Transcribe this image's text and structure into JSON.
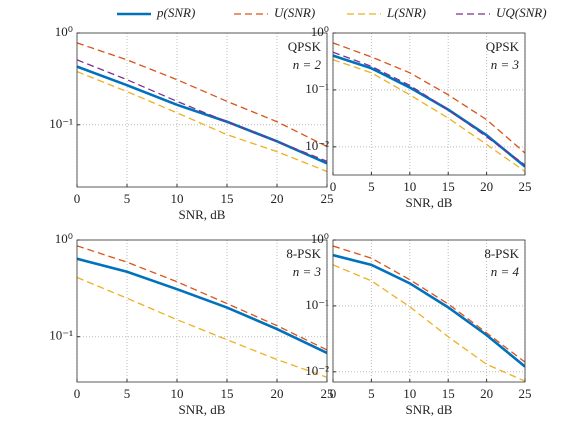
{
  "chart_data": [
    {
      "type": "line",
      "annotations": [
        "QPSK",
        "n = 2"
      ],
      "xlabel": "SNR, dB",
      "x": [
        0,
        5,
        10,
        15,
        20,
        25
      ],
      "xlim": [
        0,
        25
      ],
      "xticks": [
        0,
        5,
        10,
        15,
        20,
        25
      ],
      "ylim": [
        0.021,
        1
      ],
      "yscale": "log",
      "grid": true,
      "yticks": [
        {
          "value": 1,
          "label": "10⁰"
        },
        {
          "value": 0.1,
          "label": "10⁻¹"
        }
      ],
      "series": [
        {
          "name": "p(SNR)",
          "color": "#0072bd",
          "values": [
            0.43,
            0.27,
            0.165,
            0.108,
            0.066,
            0.038
          ]
        },
        {
          "name": "U(SNR)",
          "color": "#d95319",
          "values": [
            0.78,
            0.51,
            0.31,
            0.18,
            0.108,
            0.058
          ]
        },
        {
          "name": "L(SNR)",
          "color": "#edb120",
          "values": [
            0.38,
            0.23,
            0.135,
            0.078,
            0.051,
            0.031
          ]
        },
        {
          "name": "UQ(SNR)",
          "color": "#7e2f8e",
          "values": [
            0.51,
            0.31,
            0.18,
            0.108,
            0.066,
            0.04
          ]
        }
      ]
    },
    {
      "type": "line",
      "annotations": [
        "QPSK",
        "n = 3"
      ],
      "xlabel": "SNR, dB",
      "x": [
        0,
        5,
        10,
        15,
        20,
        25
      ],
      "xlim": [
        0,
        25
      ],
      "xticks": [
        0,
        5,
        10,
        15,
        20,
        25
      ],
      "ylim": [
        0.0032,
        1
      ],
      "yscale": "log",
      "grid": true,
      "yticks": [
        {
          "value": 1,
          "label": "10⁰"
        },
        {
          "value": 0.1,
          "label": "10⁻¹"
        },
        {
          "value": 0.01,
          "label": "10⁻²"
        }
      ],
      "series": [
        {
          "name": "p(SNR)",
          "color": "#0072bd",
          "values": [
            0.4,
            0.24,
            0.11,
            0.045,
            0.016,
            0.0045
          ]
        },
        {
          "name": "U(SNR)",
          "color": "#d95319",
          "values": [
            0.67,
            0.38,
            0.2,
            0.082,
            0.03,
            0.0078
          ]
        },
        {
          "name": "L(SNR)",
          "color": "#edb120",
          "values": [
            0.34,
            0.2,
            0.082,
            0.032,
            0.011,
            0.0037
          ]
        },
        {
          "name": "UQ(SNR)",
          "color": "#7e2f8e",
          "values": [
            0.46,
            0.26,
            0.12,
            0.045,
            0.015,
            0.0048
          ]
        }
      ]
    },
    {
      "type": "line",
      "annotations": [
        "8-PSK",
        "n = 3"
      ],
      "xlabel": "SNR, dB",
      "x": [
        0,
        5,
        10,
        15,
        20,
        25
      ],
      "xlim": [
        0,
        25
      ],
      "xticks": [
        0,
        5,
        10,
        15,
        20,
        25
      ],
      "ylim": [
        0.034,
        1
      ],
      "yscale": "log",
      "grid": true,
      "yticks": [
        {
          "value": 1,
          "label": "10⁰"
        },
        {
          "value": 0.1,
          "label": "10⁻¹"
        }
      ],
      "series": [
        {
          "name": "p(SNR)",
          "color": "#0072bd",
          "values": [
            0.64,
            0.47,
            0.31,
            0.2,
            0.12,
            0.068
          ]
        },
        {
          "name": "U(SNR)",
          "color": "#d95319",
          "values": [
            0.87,
            0.59,
            0.37,
            0.22,
            0.13,
            0.073
          ]
        },
        {
          "name": "L(SNR)",
          "color": "#edb120",
          "values": [
            0.41,
            0.25,
            0.15,
            0.093,
            0.058,
            0.038
          ]
        }
      ]
    },
    {
      "type": "line",
      "annotations": [
        "8-PSK",
        "n = 4"
      ],
      "xlabel": "SNR, dB",
      "x": [
        0,
        5,
        10,
        15,
        20,
        25
      ],
      "xlim": [
        0,
        25
      ],
      "xticks": [
        0,
        5,
        10,
        15,
        20,
        25
      ],
      "ylim": [
        0.007,
        1
      ],
      "yscale": "log",
      "grid": true,
      "yticks": [
        {
          "value": 1,
          "label": "10⁰"
        },
        {
          "value": 0.1,
          "label": "10⁻¹"
        },
        {
          "value": 0.01,
          "label": "10⁻²"
        }
      ],
      "series": [
        {
          "name": "p(SNR)",
          "color": "#0072bd",
          "values": [
            0.59,
            0.42,
            0.22,
            0.095,
            0.036,
            0.012
          ]
        },
        {
          "name": "U(SNR)",
          "color": "#d95319",
          "values": [
            0.81,
            0.53,
            0.25,
            0.107,
            0.039,
            0.014
          ]
        },
        {
          "name": "L(SNR)",
          "color": "#edb120",
          "values": [
            0.42,
            0.24,
            0.097,
            0.034,
            0.013,
            0.0072
          ]
        }
      ]
    }
  ]
}
